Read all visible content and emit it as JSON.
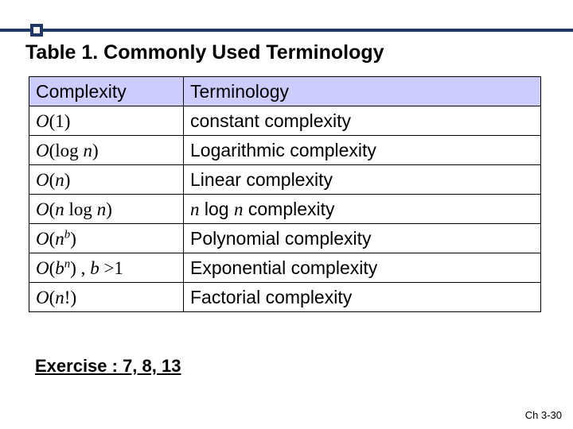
{
  "title": "Table 1. Commonly Used Terminology",
  "table": {
    "header": {
      "c0": "Complexity",
      "c1": "Terminology"
    },
    "rows": [
      {
        "c0_html": "<span class='it'>O</span><span class='rm'>(1)</span>",
        "c1": "constant complexity"
      },
      {
        "c0_html": "<span class='it'>O</span><span class='rm'>(log </span><span class='it'>n</span><span class='rm'>)</span>",
        "c1": "Logarithmic complexity"
      },
      {
        "c0_html": "<span class='it'>O</span><span class='rm'>(</span><span class='it'>n</span><span class='rm'>)</span>",
        "c1": "Linear complexity"
      },
      {
        "c0_html": "<span class='it'>O</span><span class='rm'>(</span><span class='it'>n</span><span class='rm'> log </span><span class='it'>n</span><span class='rm'>)</span>",
        "c1_html": "<span class='it'>n</span> log <span class='it'>n</span> complexity"
      },
      {
        "c0_html": "<span class='it'>O</span><span class='rm'>(</span><span class='it'>n</span><span class='sup'>b</span><span class='rm'>)</span>",
        "c1": "Polynomial complexity"
      },
      {
        "c0_html": "<span class='it'>O</span><span class='rm'>(</span><span class='it'>b</span><span class='sup'>n</span><span class='rm'>) , </span><span class='it'>b </span><span class='rm'>&gt;1</span>",
        "c1": "Exponential complexity"
      },
      {
        "c0_html": "<span class='it'>O</span><span class='rm'>(</span><span class='it'>n</span><span class='rm'>!)</span>",
        "c1": "Factorial complexity"
      }
    ]
  },
  "exercise": "Exercise : 7, 8, 13",
  "footer": "Ch 3-30",
  "colors": {
    "header_bg": "#ccccff",
    "bar": "#1f3864"
  }
}
